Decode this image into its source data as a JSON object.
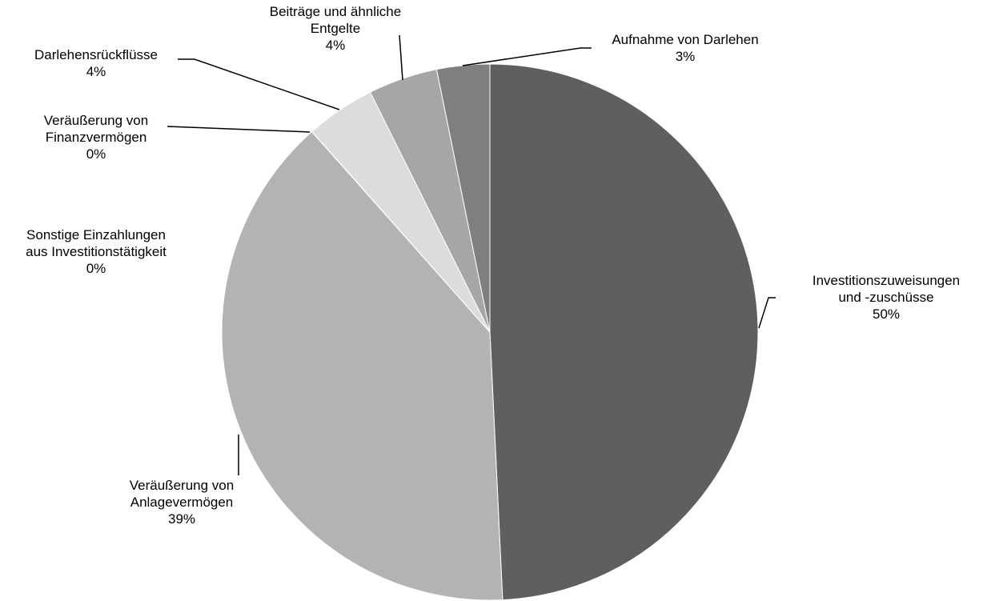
{
  "chart_data": {
    "type": "pie",
    "title": "",
    "slices": [
      {
        "label": [
          "Investitionszuweisungen",
          "und -zuschüsse"
        ],
        "percent_label": "50%",
        "value": 49.5,
        "color": "#5f5f5f"
      },
      {
        "label": [
          "Veräußerung von",
          "Anlagevermögen"
        ],
        "percent_label": "39%",
        "value": 39.4,
        "color": "#b3b3b3"
      },
      {
        "label": [
          "Sonstige Einzahlungen",
          "aus Investitionstätigkeit"
        ],
        "percent_label": "0%",
        "value": 0.01,
        "color": "#d9d9d9"
      },
      {
        "label": [
          "Veräußerung von",
          "Finanzvermögen"
        ],
        "percent_label": "0%",
        "value": 0.01,
        "color": "#d0d0d0"
      },
      {
        "label": [
          "Darlehensrückflüsse"
        ],
        "percent_label": "4%",
        "value": 4.2,
        "color": "#dcdcdc"
      },
      {
        "label": [
          "Beiträge und ähnliche",
          "Entgelte"
        ],
        "percent_label": "4%",
        "value": 4.2,
        "color": "#a6a6a6"
      },
      {
        "label": [
          "Aufnahme von Darlehen"
        ],
        "percent_label": "3%",
        "value": 3.2,
        "color": "#7f7f7f"
      }
    ],
    "start_angle_deg": 0,
    "direction": "clockwise",
    "legend": "none",
    "slice_border_color": "#ffffff"
  }
}
